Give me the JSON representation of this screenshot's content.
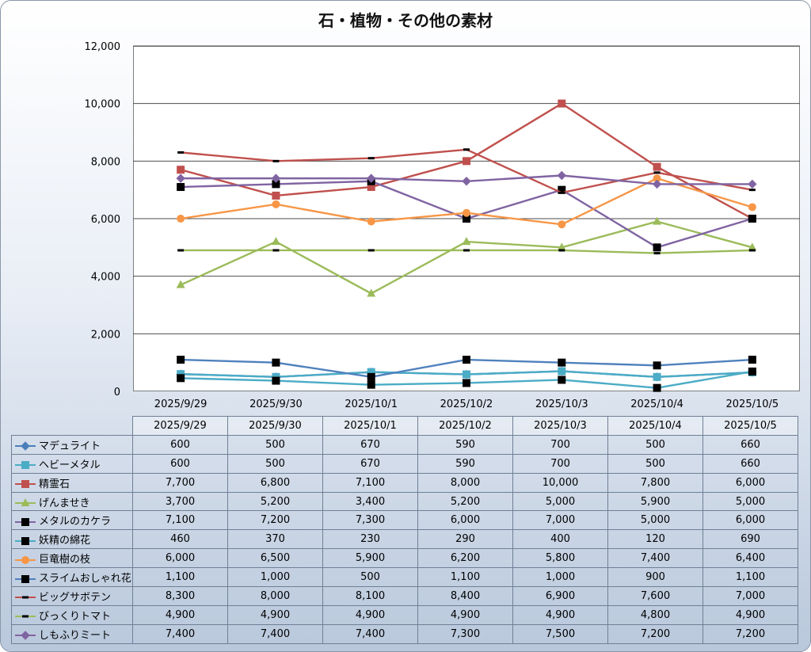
{
  "chart_data": {
    "type": "line",
    "title": "石・植物・その他の素材",
    "categories": [
      "2025/9/29",
      "2025/9/30",
      "2025/10/1",
      "2025/10/2",
      "2025/10/3",
      "2025/10/4",
      "2025/10/5"
    ],
    "ylim": [
      0,
      12000
    ],
    "yticks": [
      "0",
      "2,000",
      "4,000",
      "6,000",
      "8,000",
      "10,000",
      "12,000"
    ],
    "grid": true,
    "legend": "table-below",
    "series": [
      {
        "name": "マデュライト",
        "color": "#4a7ebb",
        "marker": "diamond",
        "values": [
          600,
          500,
          670,
          590,
          700,
          500,
          660
        ],
        "labels": [
          "600",
          "500",
          "670",
          "590",
          "700",
          "500",
          "660"
        ]
      },
      {
        "name": "ヘビーメタル",
        "color": "#4bacc6",
        "marker": "square",
        "values": [
          600,
          500,
          670,
          590,
          700,
          500,
          660
        ],
        "labels": [
          "600",
          "500",
          "670",
          "590",
          "700",
          "500",
          "660"
        ]
      },
      {
        "name": "精霊石",
        "color": "#c0504d",
        "marker": "square",
        "values": [
          7700,
          6800,
          7100,
          8000,
          10000,
          7800,
          6000
        ],
        "labels": [
          "7,700",
          "6,800",
          "7,100",
          "8,000",
          "10,000",
          "7,800",
          "6,000"
        ]
      },
      {
        "name": "げんませき",
        "color": "#9bbb59",
        "marker": "triangle",
        "values": [
          3700,
          5200,
          3400,
          5200,
          5000,
          5900,
          5000
        ],
        "labels": [
          "3,700",
          "5,200",
          "3,400",
          "5,200",
          "5,000",
          "5,900",
          "5,000"
        ]
      },
      {
        "name": "メタルのカケラ",
        "color": "#8064a2",
        "marker": "blacksquare",
        "values": [
          7100,
          7200,
          7300,
          6000,
          7000,
          5000,
          6000
        ],
        "labels": [
          "7,100",
          "7,200",
          "7,300",
          "6,000",
          "7,000",
          "5,000",
          "6,000"
        ]
      },
      {
        "name": "妖精の綿花",
        "color": "#4bacc6",
        "marker": "blacksquare",
        "values": [
          460,
          370,
          230,
          290,
          400,
          120,
          690
        ],
        "labels": [
          "460",
          "370",
          "230",
          "290",
          "400",
          "120",
          "690"
        ]
      },
      {
        "name": "巨竜樹の枝",
        "color": "#f79646",
        "marker": "circle",
        "values": [
          6000,
          6500,
          5900,
          6200,
          5800,
          7400,
          6400
        ],
        "labels": [
          "6,000",
          "6,500",
          "5,900",
          "6,200",
          "5,800",
          "7,400",
          "6,400"
        ]
      },
      {
        "name": "スライムおしゃれ花",
        "color": "#4f81bd",
        "marker": "blacksquare",
        "values": [
          1100,
          1000,
          500,
          1100,
          1000,
          900,
          1100
        ],
        "labels": [
          "1,100",
          "1,000",
          "500",
          "1,100",
          "1,000",
          "900",
          "1,100"
        ]
      },
      {
        "name": "ビッグサボテン",
        "color": "#c0504d",
        "marker": "dash",
        "values": [
          8300,
          8000,
          8100,
          8400,
          6900,
          7600,
          7000
        ],
        "labels": [
          "8,300",
          "8,000",
          "8,100",
          "8,400",
          "6,900",
          "7,600",
          "7,000"
        ]
      },
      {
        "name": "びっくりトマト",
        "color": "#9bbb59",
        "marker": "dash",
        "values": [
          4900,
          4900,
          4900,
          4900,
          4900,
          4800,
          4900
        ],
        "labels": [
          "4,900",
          "4,900",
          "4,900",
          "4,900",
          "4,900",
          "4,800",
          "4,900"
        ]
      },
      {
        "name": "しもふりミート",
        "color": "#8064a2",
        "marker": "diamond",
        "values": [
          7400,
          7400,
          7400,
          7300,
          7500,
          7200,
          7200
        ],
        "labels": [
          "7,400",
          "7,400",
          "7,400",
          "7,300",
          "7,500",
          "7,200",
          "7,200"
        ]
      }
    ]
  }
}
